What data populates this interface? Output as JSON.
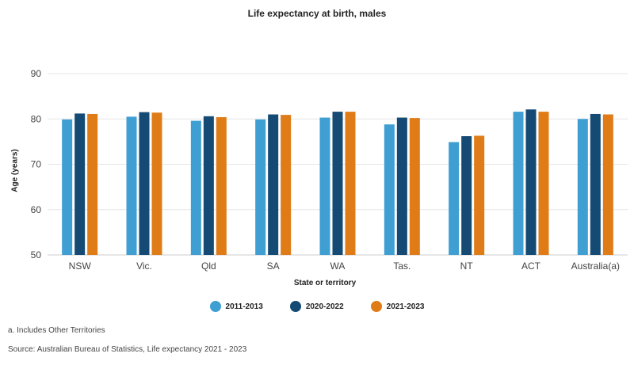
{
  "chart_data": {
    "type": "bar",
    "title": "Life expectancy at birth, males",
    "xlabel": "State or territory",
    "ylabel": "Age (years)",
    "ylim": [
      50,
      90
    ],
    "yticks": [
      50,
      60,
      70,
      80,
      90
    ],
    "grid": true,
    "legend_position": "bottom",
    "categories": [
      "NSW",
      "Vic.",
      "Qld",
      "SA",
      "WA",
      "Tas.",
      "NT",
      "ACT",
      "Australia(a)"
    ],
    "series": [
      {
        "name": "2011-2013",
        "color": "#3f9fd3",
        "values": [
          79.9,
          80.5,
          79.6,
          79.9,
          80.3,
          78.8,
          74.9,
          81.6,
          80.0
        ]
      },
      {
        "name": "2020-2022",
        "color": "#144a73",
        "values": [
          81.2,
          81.5,
          80.6,
          81.0,
          81.6,
          80.3,
          76.2,
          82.1,
          81.1
        ]
      },
      {
        "name": "2021-2023",
        "color": "#e07c17",
        "values": [
          81.1,
          81.4,
          80.4,
          80.9,
          81.6,
          80.2,
          76.3,
          81.6,
          81.0
        ]
      }
    ]
  },
  "footnote": "a. Includes Other Territories",
  "source": "Source: Australian Bureau of Statistics, Life expectancy 2021 - 2023"
}
